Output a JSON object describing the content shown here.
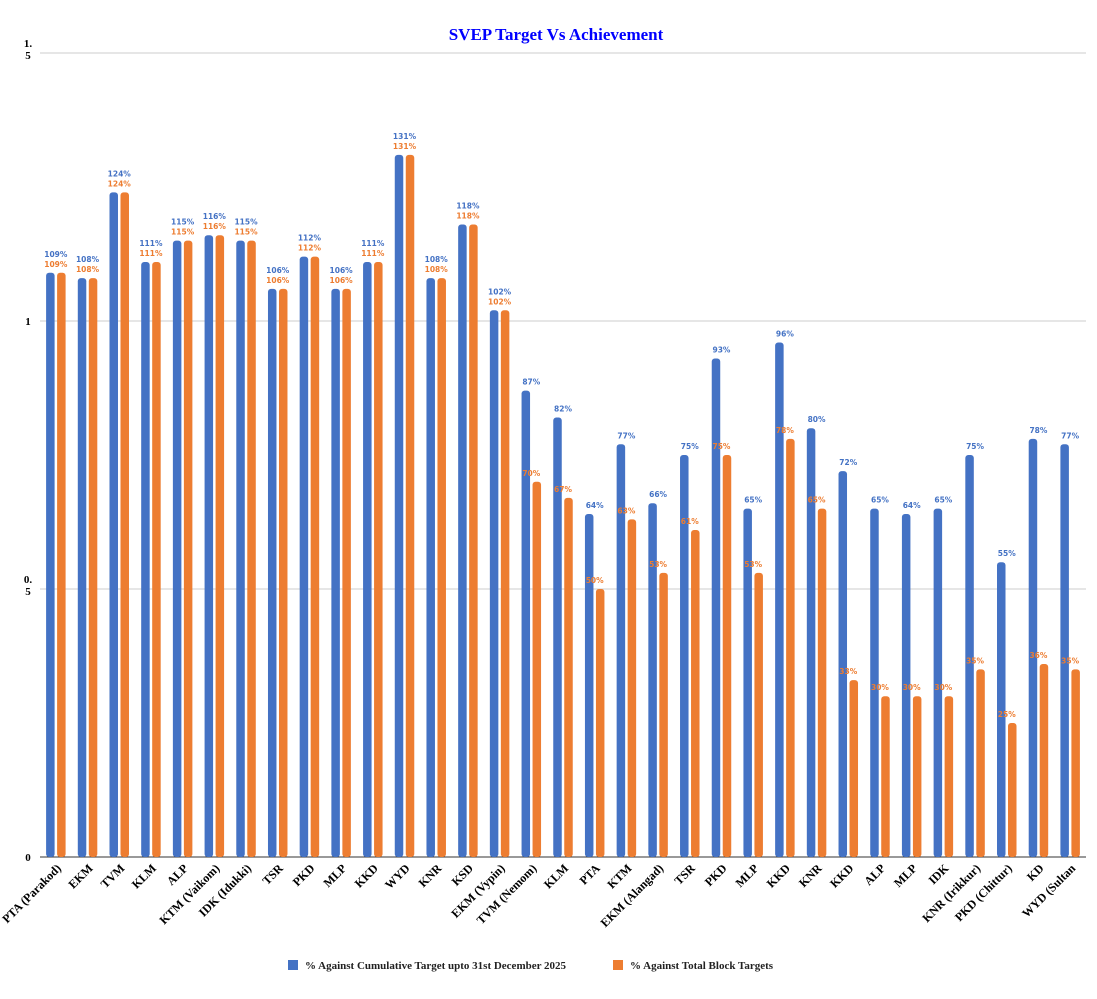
{
  "chart_data": {
    "type": "bar",
    "title": "SVEP Target Vs Achievement",
    "xlabel": "",
    "ylabel": "",
    "ylim": [
      0,
      1.5
    ],
    "yticks": [
      "0",
      "0.5",
      "1",
      "1.5"
    ],
    "grid": true,
    "legend_position": "bottom",
    "categories": [
      "PTA (Parakod)",
      "EKM",
      "TVM",
      "KLM",
      "ALP",
      "KTM (Vaikom)",
      "IDK (Idukki)",
      "TSR",
      "PKD",
      "MLP",
      "KKD",
      "WYD",
      "KNR",
      "KSD",
      "EKM (Vypin)",
      "TVM (Nemom)",
      "KLM",
      "PTA",
      "KTM",
      "EKM (Alangad)",
      "TSR",
      "PKD",
      "MLP",
      "KKD",
      "KNR",
      "KKD",
      "ALP",
      "MLP",
      "IDK",
      "KNR (Irikkur)",
      "PKD (Chittur)",
      "KD",
      "WYD (Sultan"
    ],
    "series": [
      {
        "name": "% Against Cumulative Target upto 31st December 2025",
        "color": "#4472c4",
        "values": [
          1.09,
          1.08,
          1.24,
          1.11,
          1.15,
          1.16,
          1.15,
          1.06,
          1.12,
          1.06,
          1.11,
          1.31,
          1.08,
          1.18,
          1.02,
          0.87,
          0.82,
          0.64,
          0.77,
          0.66,
          0.75,
          0.93,
          0.65,
          0.96,
          0.8,
          0.72,
          0.65,
          0.64,
          0.65,
          0.75,
          0.55,
          0.78,
          0.77
        ],
        "labels": [
          "109%",
          "108%",
          "124%",
          "111%",
          "115%",
          "116%",
          "115%",
          "106%",
          "112%",
          "106%",
          "111%",
          "131%",
          "108%",
          "118%",
          "102%",
          "87%",
          "82%",
          "64%",
          "77%",
          "66%",
          "75%",
          "93%",
          "65%",
          "96%",
          "80%",
          "72%",
          "65%",
          "64%",
          "65%",
          "75%",
          "55%",
          "78%",
          "77%"
        ]
      },
      {
        "name": "% Against Total Block Targets",
        "color": "#ed7d31",
        "values": [
          1.09,
          1.08,
          1.24,
          1.11,
          1.15,
          1.16,
          1.15,
          1.06,
          1.12,
          1.06,
          1.11,
          1.31,
          1.08,
          1.18,
          1.02,
          0.7,
          0.67,
          0.5,
          0.63,
          0.53,
          0.61,
          0.75,
          0.53,
          0.78,
          0.65,
          0.33,
          0.3,
          0.3,
          0.3,
          0.35,
          0.25,
          0.36,
          0.35
        ],
        "labels": [
          "109%",
          "108%",
          "124%",
          "111%",
          "115%",
          "116%",
          "115%",
          "106%",
          "112%",
          "106%",
          "111%",
          "131%",
          "108%",
          "118%",
          "102%",
          "70%",
          "67%",
          "50%",
          "63%",
          "53%",
          "61%",
          "75%",
          "53%",
          "78%",
          "65%",
          "33%",
          "30%",
          "30%",
          "30%",
          "35%",
          "25%",
          "36%",
          "35%"
        ]
      }
    ]
  }
}
